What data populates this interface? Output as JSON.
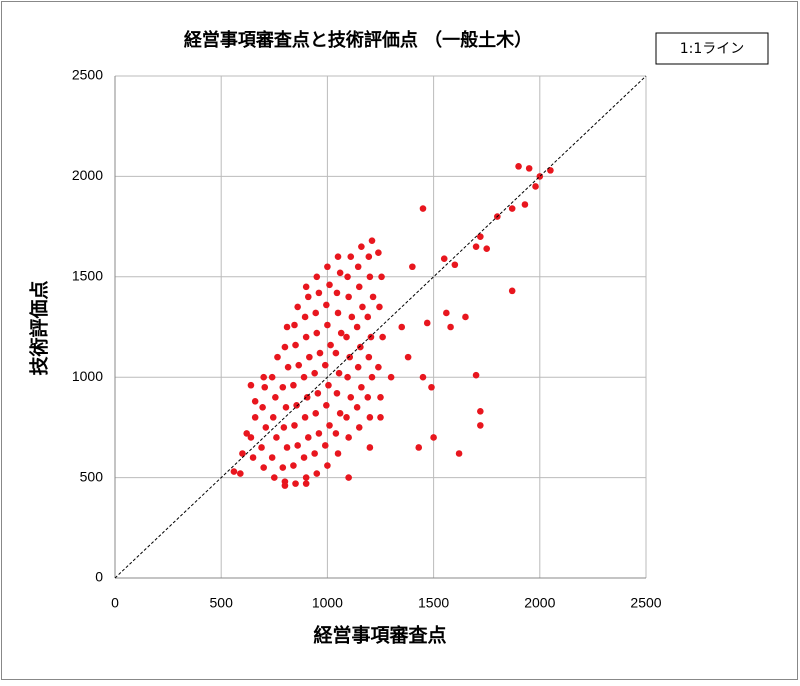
{
  "chart_data": {
    "type": "scatter",
    "title": "経営事項審査点と技術評価点 （一般土木）",
    "x_label": "経営事項審査点",
    "y_label": "技術評価点",
    "xlim": [
      0,
      2500
    ],
    "ylim": [
      0,
      2500
    ],
    "xticks": [
      0,
      500,
      1000,
      1500,
      2000,
      2500
    ],
    "yticks": [
      0,
      500,
      1000,
      1500,
      2000,
      2500
    ],
    "grid": true,
    "legend": "top-right",
    "series": [
      {
        "color": "#e8161e",
        "x": [
          650,
          640,
          660,
          700,
          690,
          710,
          695,
          705,
          750,
          740,
          760,
          745,
          755,
          740,
          765,
          800,
          790,
          810,
          795,
          805,
          790,
          815,
          800,
          810,
          850,
          840,
          860,
          845,
          855,
          840,
          865,
          850,
          845,
          860,
          900,
          890,
          910,
          895,
          905,
          890,
          915,
          900,
          895,
          910,
          900,
          950,
          940,
          960,
          945,
          955,
          940,
          965,
          950,
          945,
          960,
          950,
          1000,
          990,
          1010,
          995,
          1005,
          990,
          1015,
          1000,
          995,
          1010,
          1000,
          1050,
          1040,
          1060,
          1045,
          1055,
          1040,
          1065,
          1050,
          1045,
          1060,
          1050,
          1100,
          1090,
          1110,
          1095,
          1105,
          1090,
          1115,
          1100,
          1095,
          1110,
          1150,
          1140,
          1160,
          1145,
          1155,
          1140,
          1165,
          1150,
          1145,
          1160,
          1200,
          1190,
          1210,
          1195,
          1205,
          1190,
          1215,
          1200,
          1195,
          1210,
          1250,
          1240,
          1260,
          1245,
          1255,
          1240,
          1900,
          1950,
          2000,
          2050,
          1980,
          1930,
          1870,
          1870,
          1800,
          1720,
          1750,
          1700,
          1720,
          1720,
          1700,
          1620,
          1500,
          1430,
          1580,
          1650,
          1560,
          1470,
          1600,
          1550,
          1450,
          1400,
          1350,
          1300,
          1450,
          1490,
          1380,
          1200,
          1250,
          590,
          560,
          600,
          620,
          640,
          700,
          660,
          900,
          1100,
          800
        ],
        "values": [
          600,
          700,
          800,
          550,
          650,
          750,
          850,
          950,
          500,
          600,
          700,
          800,
          900,
          1000,
          1100,
          480,
          550,
          650,
          750,
          850,
          950,
          1050,
          1150,
          1250,
          470,
          560,
          660,
          760,
          860,
          960,
          1060,
          1160,
          1260,
          1350,
          500,
          600,
          700,
          800,
          900,
          1000,
          1100,
          1200,
          1300,
          1400,
          1450,
          520,
          620,
          720,
          820,
          920,
          1020,
          1120,
          1220,
          1320,
          1420,
          1500,
          560,
          660,
          760,
          860,
          960,
          1060,
          1160,
          1260,
          1360,
          1460,
          1550,
          620,
          720,
          820,
          920,
          1020,
          1120,
          1220,
          1320,
          1420,
          1520,
          1600,
          700,
          800,
          900,
          1000,
          1100,
          1200,
          1300,
          1400,
          1500,
          1600,
          750,
          850,
          950,
          1050,
          1150,
          1250,
          1350,
          1450,
          1550,
          1650,
          800,
          900,
          1000,
          1100,
          1200,
          1300,
          1400,
          1500,
          1600,
          1680,
          900,
          1050,
          1200,
          1350,
          1500,
          1620,
          2050,
          2040,
          2000,
          2030,
          1950,
          1860,
          1840,
          1430,
          1800,
          1700,
          1640,
          1650,
          830,
          760,
          1010,
          620,
          700,
          650,
          1250,
          1300,
          1320,
          1270,
          1560,
          1590,
          1840,
          1550,
          1250,
          1000,
          1000,
          950,
          1100,
          650,
          800,
          520,
          530,
          620,
          720,
          960,
          1000,
          880,
          470,
          500,
          460
        ]
      },
      {
        "name": "1:1ライン",
        "color": "#000000",
        "style": "dashed",
        "x": [
          0,
          2500
        ],
        "values": [
          0,
          2500
        ]
      }
    ]
  }
}
